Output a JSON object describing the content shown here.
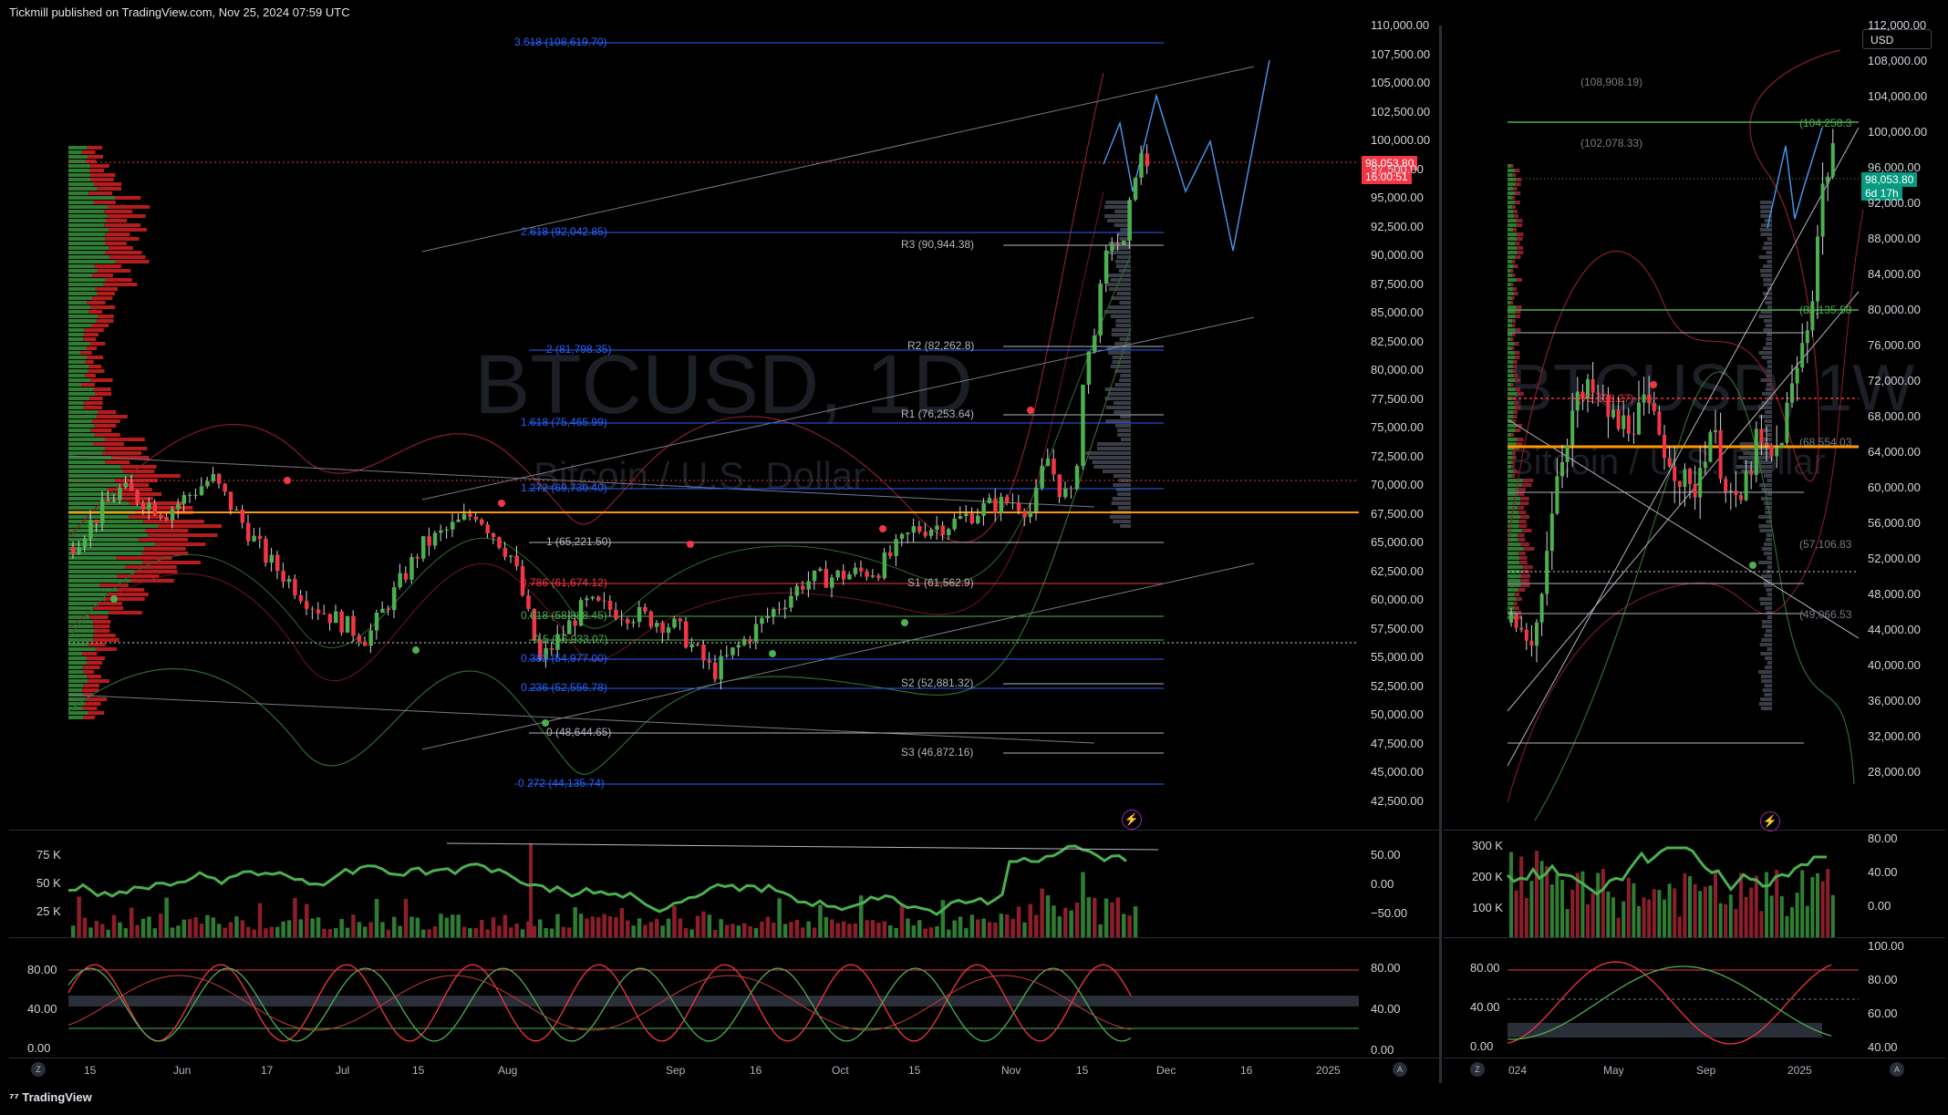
{
  "header": {
    "publisher": "Tickmill published on TradingView.com, Nov 25, 2024 07:59 UTC"
  },
  "footer": {
    "logo_text": "TradingView"
  },
  "colors": {
    "up": "#4caf50",
    "down": "#f23645",
    "fib": "#2962ff",
    "orange": "#ff9800",
    "bg": "#000000"
  },
  "left_chart": {
    "watermark_symbol": "BTCUSD, 1D",
    "watermark_name": "Bitcoin / U.S. Dollar",
    "current_price": "98,053.80",
    "countdown": "16:00:51",
    "price_axis": [
      "110,000.00",
      "107,500.00",
      "105,000.00",
      "102,500.00",
      "100,000.00",
      "97,500.00",
      "95,000.00",
      "92,500.00",
      "90,000.00",
      "87,500.00",
      "85,000.00",
      "82,500.00",
      "80,000.00",
      "77,500.00",
      "75,000.00",
      "72,500.00",
      "70,000.00",
      "67,500.00",
      "65,000.00",
      "62,500.00",
      "60,000.00",
      "57,500.00",
      "55,000.00",
      "52,500.00",
      "50,000.00",
      "47,500.00",
      "45,000.00",
      "42,500.00"
    ],
    "fib_levels": [
      {
        "label": "3.618 (108,619.70)",
        "color": "#2962ff"
      },
      {
        "label": "2.618 (92,042.85)",
        "color": "#2962ff"
      },
      {
        "label": "2 (81,798.35)",
        "color": "#2962ff"
      },
      {
        "label": "1.618 (75,465.99)",
        "color": "#2962ff"
      },
      {
        "label": "1.272 (69,730.40)",
        "color": "#2962ff"
      },
      {
        "label": "1 (65,221.50)",
        "color": "#b2b5be"
      },
      {
        "label": "0.786 (61,674.12)",
        "color": "#f23645"
      },
      {
        "label": "0.618 (58,888.45)",
        "color": "#4caf50"
      },
      {
        "label": "0.5 (56,933.07)",
        "color": "#4caf50"
      },
      {
        "label": "0.382 (54,977.00)",
        "color": "#2962ff"
      },
      {
        "label": "0.236 (52,556.78)",
        "color": "#2962ff"
      },
      {
        "label": "0 (48,644.65)",
        "color": "#b2b5be"
      },
      {
        "label": "-0.272 (44,135.74)",
        "color": "#2962ff"
      }
    ],
    "pivots": [
      "R3 (90,944.38)",
      "R2 (82,262.8)",
      "R1 (76,253.64)",
      "S1 (61,562.9)",
      "S2 (52,881.32)",
      "S3 (46,872.16)"
    ],
    "volume_axis": [
      "75 K",
      "50 K",
      "25 K"
    ],
    "osc_axis": [
      "50.00",
      "0.00",
      "−50.00"
    ],
    "stoch_axis_left": [
      "80.00",
      "40.00",
      "0.00"
    ],
    "stoch_axis_right": [
      "80.00",
      "40.00",
      "0.00"
    ],
    "time_axis": [
      "15",
      "Jun",
      "17",
      "Jul",
      "15",
      "Aug",
      "Sep",
      "16",
      "Oct",
      "15",
      "Nov",
      "15",
      "Dec",
      "16",
      "2025"
    ]
  },
  "right_chart": {
    "watermark_symbol": "BTCUSD, 1W",
    "watermark_name": "Bitcoin / U.S. Dollar",
    "currency_button": "USD",
    "current_price": "98,053.80",
    "countdown": "6d 17h",
    "price_axis": [
      "112,000.00",
      "108,000.00",
      "104,000.00",
      "100,000.00",
      "96,000.00",
      "92,000.00",
      "88,000.00",
      "84,000.00",
      "80,000.00",
      "76,000.00",
      "72,000.00",
      "68,000.00",
      "64,000.00",
      "60,000.00",
      "56,000.00",
      "52,000.00",
      "48,000.00",
      "44,000.00",
      "40,000.00",
      "36,000.00",
      "32,000.00",
      "28,000.00"
    ],
    "levels": [
      "(108,908.19)",
      "(104,258.3",
      "(102,078.33)",
      "(83,135.58",
      "(73,138.27)",
      "(68,554.03",
      "(57,106.83",
      "(49,066.53"
    ],
    "volume_axis": [
      "300 K",
      "200 K",
      "100 K"
    ],
    "osc_axis": [
      "80.00",
      "40.00",
      "0.00"
    ],
    "stoch_axis_left": [
      "80.00",
      "40.00",
      "0.00"
    ],
    "stoch_axis_right": [
      "100.00",
      "80.00",
      "60.00",
      "40.00"
    ],
    "time_axis": [
      "024",
      "May",
      "Sep",
      "2025"
    ]
  }
}
